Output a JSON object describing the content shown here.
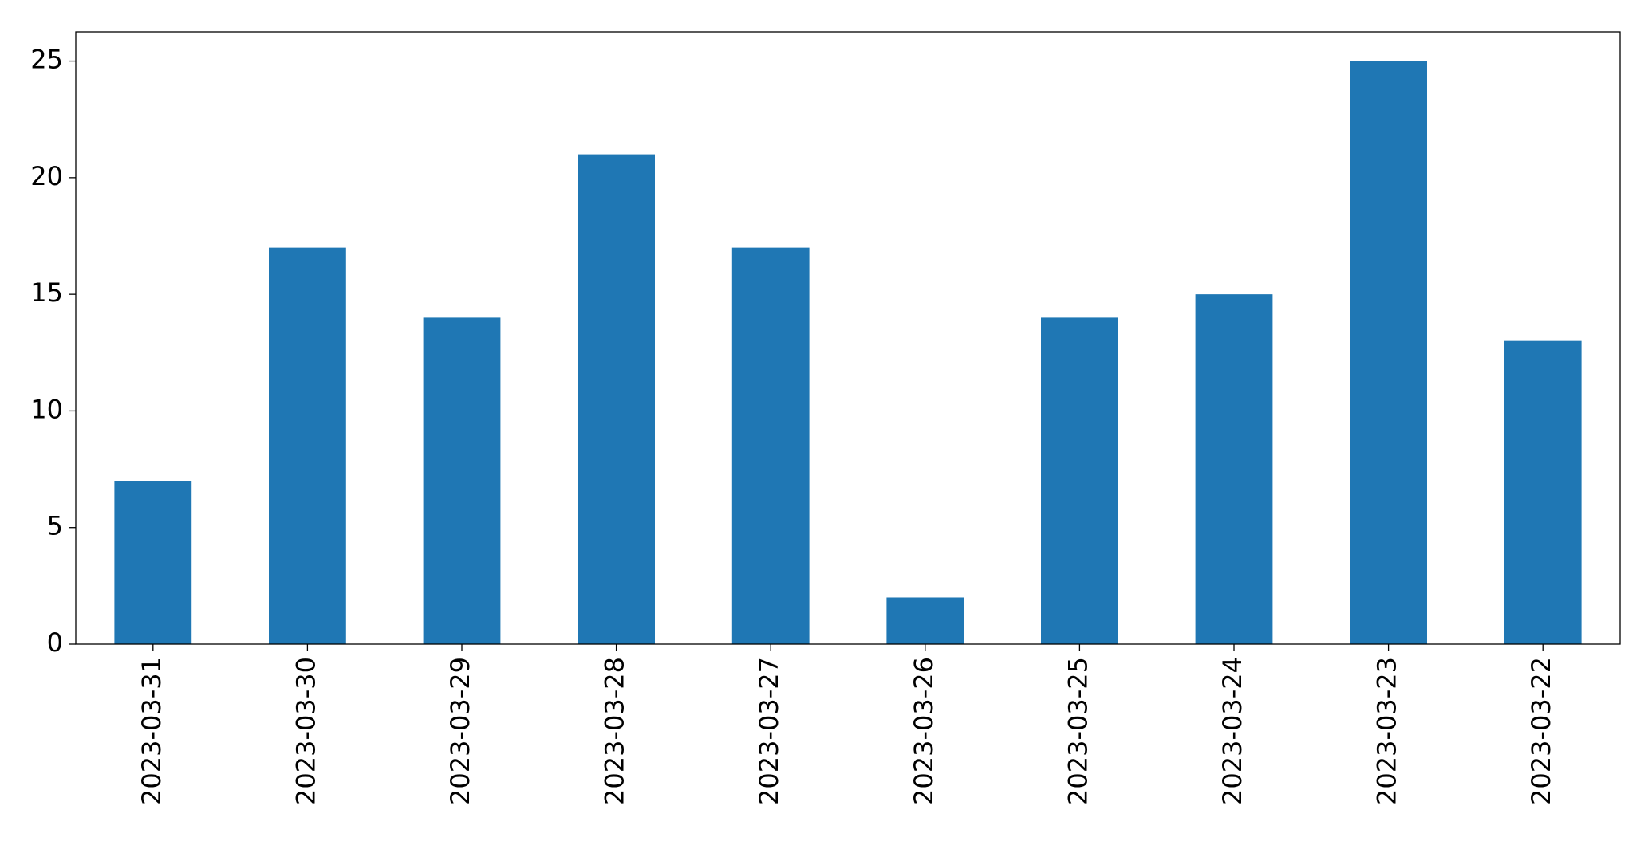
{
  "chart_data": {
    "type": "bar",
    "categories": [
      "2023-03-31",
      "2023-03-30",
      "2023-03-29",
      "2023-03-28",
      "2023-03-27",
      "2023-03-26",
      "2023-03-25",
      "2023-03-24",
      "2023-03-23",
      "2023-03-22"
    ],
    "values": [
      7,
      17,
      14,
      21,
      17,
      2,
      14,
      15,
      25,
      13
    ],
    "color": "#1f77b4",
    "ylim": [
      0,
      26.25
    ],
    "yticks": [
      0,
      5,
      10,
      15,
      20,
      25
    ],
    "grid": false
  }
}
